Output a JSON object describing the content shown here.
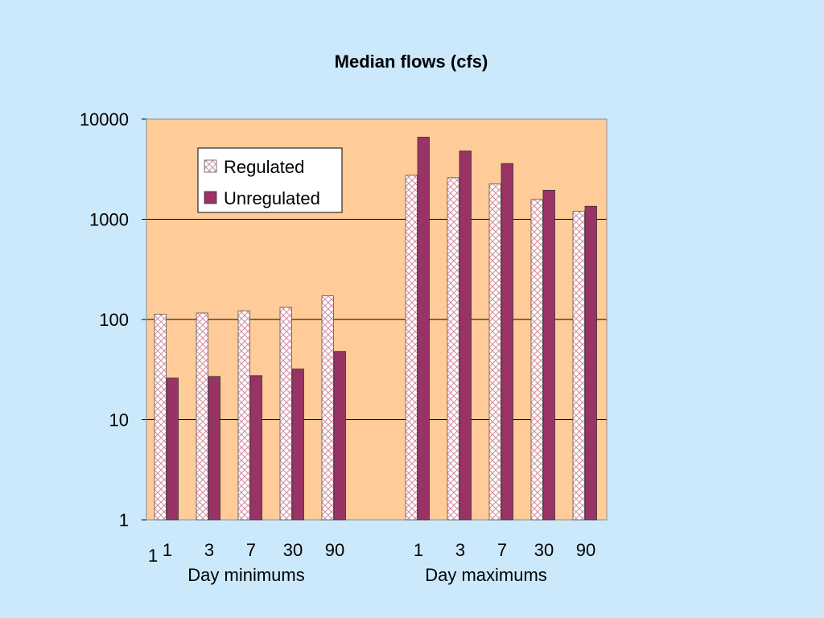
{
  "chart_data": {
    "type": "bar",
    "title": "Median flows (cfs)",
    "y_scale": "log",
    "ylim": [
      1,
      10000
    ],
    "y_ticks": [
      "1",
      "10",
      "100",
      "1000",
      "10000"
    ],
    "grid": true,
    "legend_placement": "upper-left inside plot",
    "groups": [
      {
        "label": "Day minimums",
        "categories": [
          "1",
          "3",
          "7",
          "30",
          "90"
        ]
      },
      {
        "label": "Day maximums",
        "categories": [
          "1",
          "3",
          "7",
          "30",
          "90"
        ]
      }
    ],
    "stray_tick_text": "1",
    "series": [
      {
        "name": "Regulated",
        "pattern": "crosshatch",
        "color": "#ffffff",
        "accent": "#d48aa0",
        "values": [
          113,
          116,
          122,
          132,
          172,
          2750,
          2600,
          2250,
          1580,
          1200
        ]
      },
      {
        "name": "Unregulated",
        "pattern": "solid",
        "color": "#993366",
        "values": [
          26,
          27,
          27.5,
          32,
          48,
          6600,
          4800,
          3600,
          1950,
          1350
        ]
      }
    ],
    "colors": {
      "page_background": "#cce9fb",
      "plot_background": "#ffcc99"
    }
  }
}
